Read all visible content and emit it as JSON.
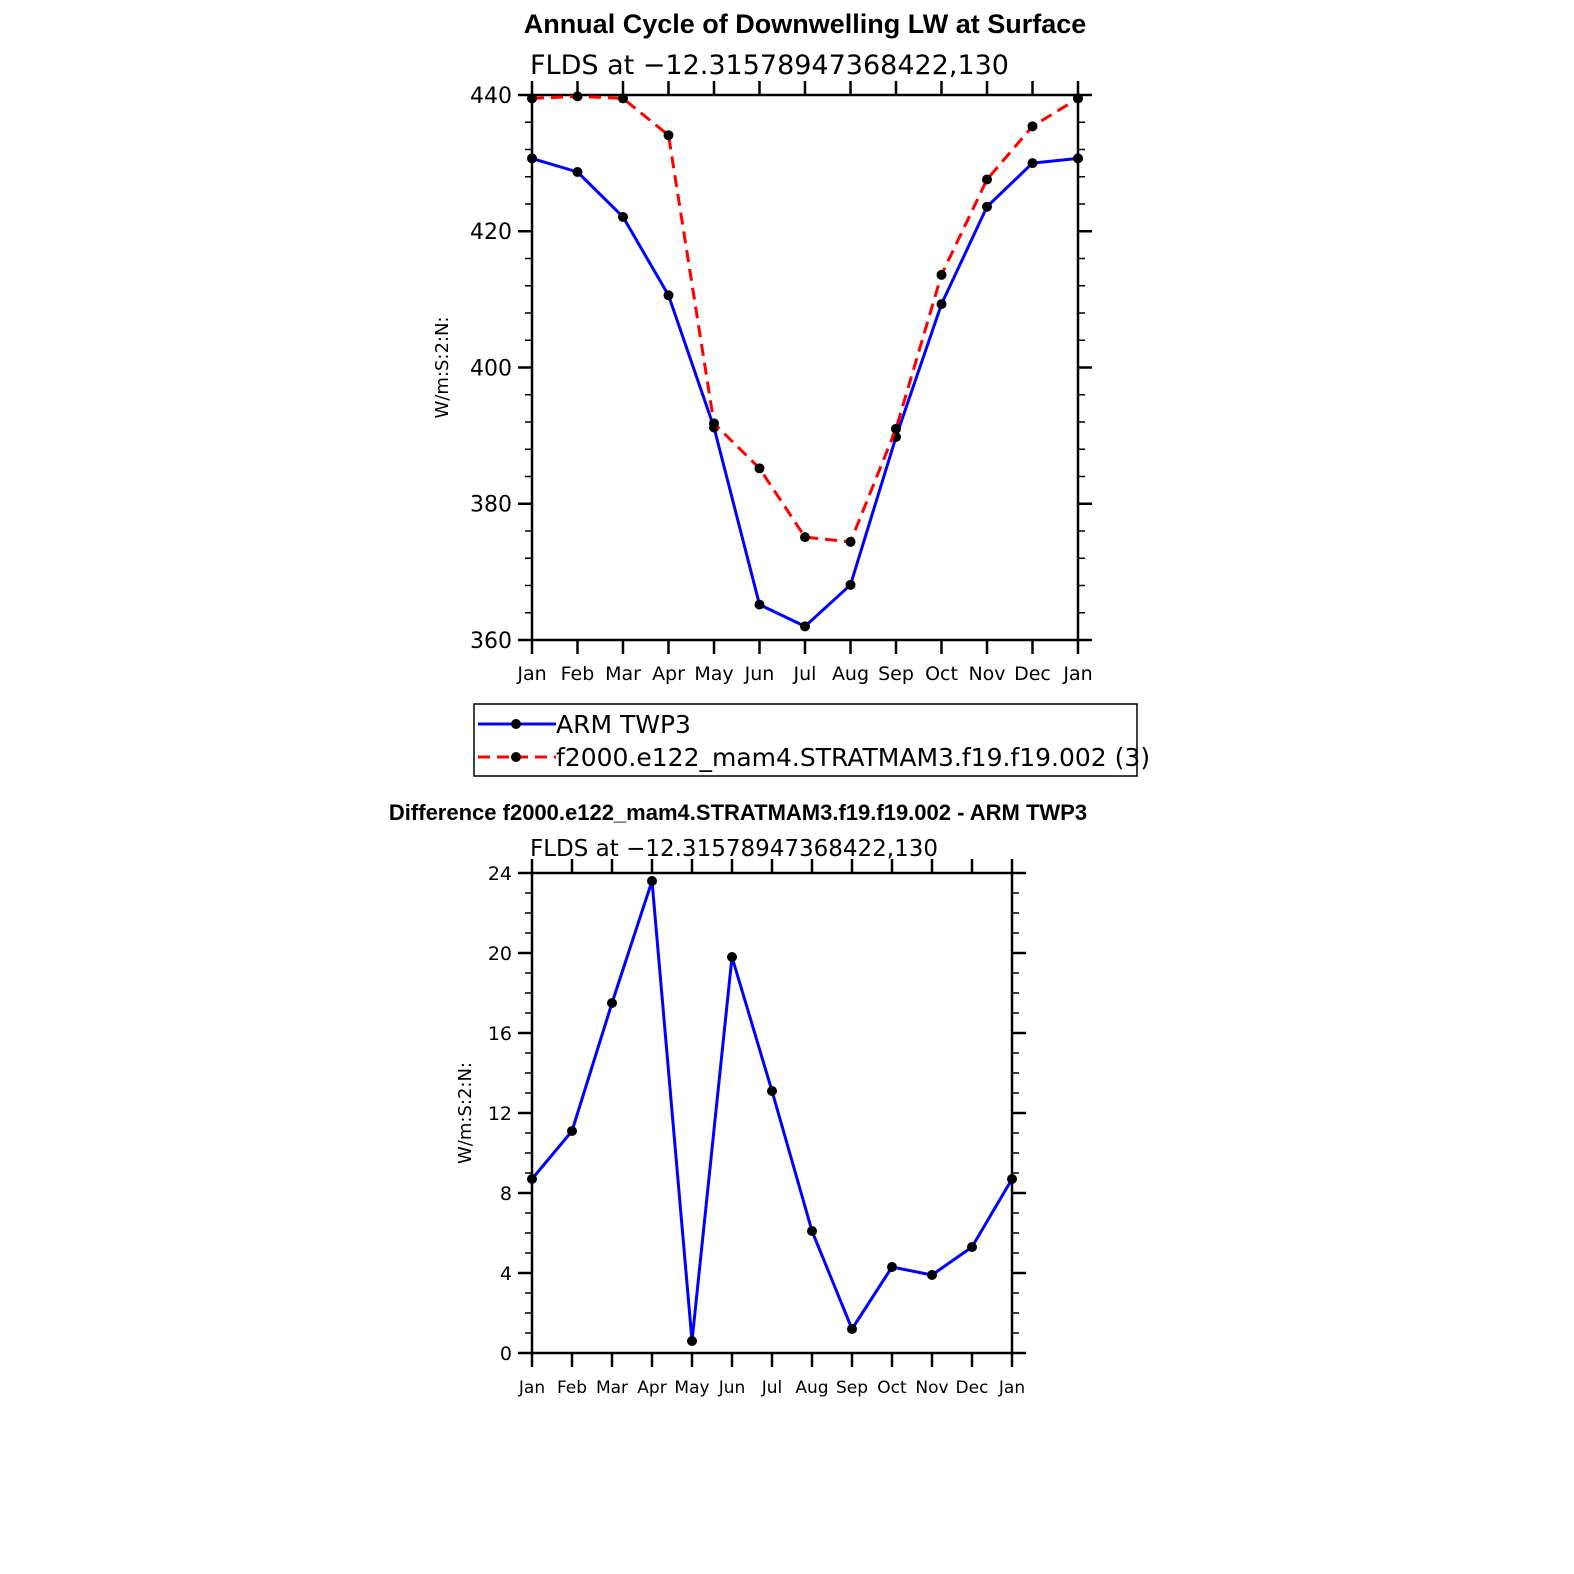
{
  "chart_data": [
    {
      "type": "line",
      "title": "Annual Cycle of Downwelling LW at Surface",
      "subtitle": "FLDS at −12.31578947368422,130",
      "xlabel": "",
      "ylabel": "W/m:S:2:N:",
      "categories": [
        "Jan",
        "Feb",
        "Mar",
        "Apr",
        "May",
        "Jun",
        "Jul",
        "Aug",
        "Sep",
        "Oct",
        "Nov",
        "Dec",
        "Jan"
      ],
      "ylim": [
        360,
        440
      ],
      "yticks": [
        360,
        380,
        400,
        420,
        440
      ],
      "grid": false,
      "legend_position": "bottom",
      "series": [
        {
          "name": "ARM TWP3",
          "color": "#0000ff",
          "dash": "solid",
          "values": [
            430.7,
            428.7,
            422.1,
            410.6,
            391.2,
            365.2,
            362.0,
            368.1,
            389.8,
            409.3,
            423.6,
            430.0,
            430.7
          ]
        },
        {
          "name": "f2000.e122_mam4.STRATMAM3.f19.f19.002 (3)",
          "color": "#ff0000",
          "dash": "dashed",
          "values": [
            439.5,
            439.8,
            439.5,
            434.1,
            391.8,
            385.2,
            375.1,
            374.4,
            391.0,
            413.6,
            427.6,
            435.4,
            439.5
          ]
        }
      ]
    },
    {
      "type": "line",
      "title": "Difference f2000.e122_mam4.STRATMAM3.f19.f19.002 - ARM TWP3",
      "subtitle": "FLDS at −12.31578947368422,130",
      "xlabel": "",
      "ylabel": "W/m:S:2:N:",
      "categories": [
        "Jan",
        "Feb",
        "Mar",
        "Apr",
        "May",
        "Jun",
        "Jul",
        "Aug",
        "Sep",
        "Oct",
        "Nov",
        "Dec",
        "Jan"
      ],
      "ylim": [
        0,
        24
      ],
      "yticks": [
        0,
        4,
        8,
        12,
        16,
        20,
        24
      ],
      "grid": false,
      "series": [
        {
          "name": "",
          "color": "#0000ff",
          "dash": "solid",
          "values": [
            8.7,
            11.1,
            17.5,
            23.6,
            0.6,
            19.8,
            13.1,
            6.1,
            1.2,
            4.3,
            3.9,
            5.3,
            8.7
          ]
        }
      ]
    }
  ]
}
